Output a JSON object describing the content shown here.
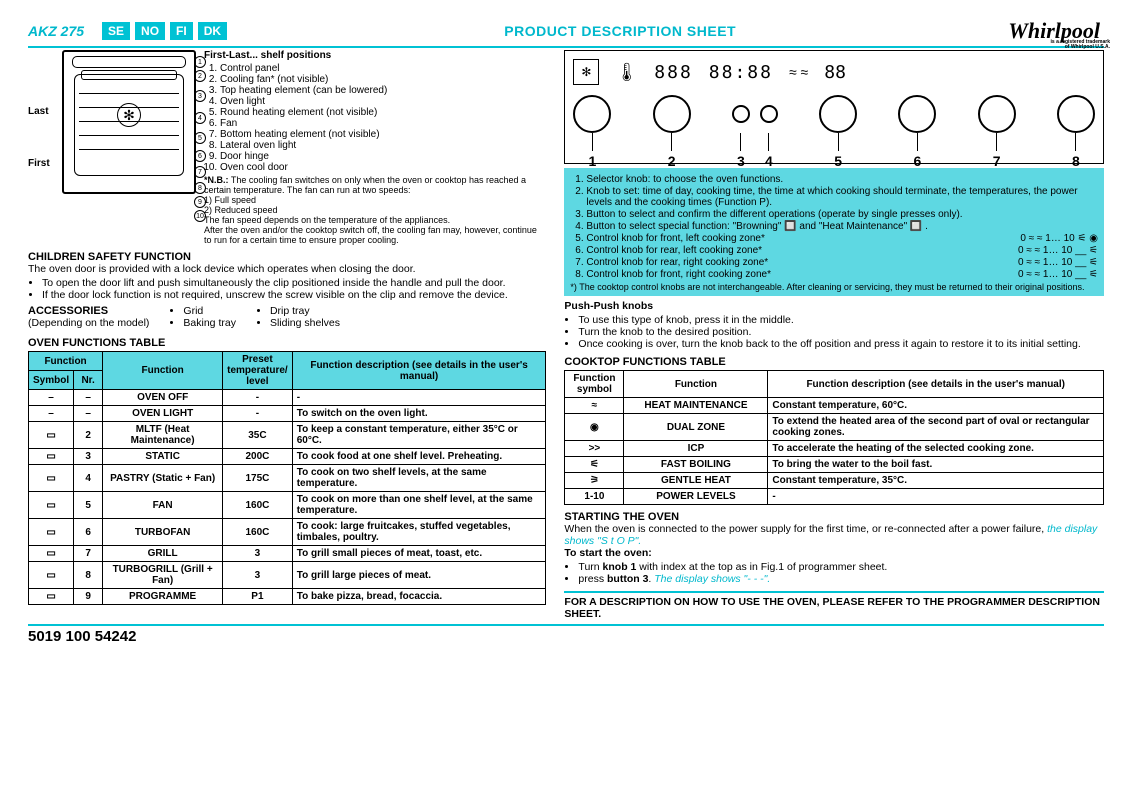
{
  "header": {
    "model": "AKZ 275",
    "countries": [
      "SE",
      "NO",
      "FI",
      "DK"
    ],
    "title": "PRODUCT DESCRIPTION SHEET",
    "brand": "Whirlpool",
    "brand_sub": "is a registered trademark of Whirlpool U.S.A."
  },
  "diagram": {
    "last": "Last",
    "first": "First",
    "firstlast": "First-Last... shelf positions",
    "parts": [
      "Control panel",
      "Cooling fan* (not visible)",
      "Top heating element (can be lowered)",
      "Oven light",
      "Round heating element (not visible)",
      "Fan",
      "Bottom heating element (not visible)",
      "Lateral oven light",
      "Door hinge",
      "Oven cool door"
    ],
    "nb_label": "*N.B.:",
    "nb_text": "The cooling fan switches on only when the oven or cooktop has reached a certain temperature. The fan can run at two speeds:",
    "nb_speed1": "1) Full speed",
    "nb_speed2": "2) Reduced speed",
    "nb_text2": "The fan speed depends on the temperature of the appliances.",
    "nb_text3": "After the oven and/or the cooktop switch off, the cooling fan may, however, continue to run for a certain time to ensure proper cooling."
  },
  "child_safety": {
    "head": "CHILDREN SAFETY FUNCTION",
    "line1": "The oven door is provided with a lock device which operates when closing the door.",
    "bul1": "To open the door lift and push simultaneously the clip positioned inside the handle and pull the door.",
    "bul2": "If the door lock function is not required, unscrew the screw visible on the clip and remove the device."
  },
  "accessories": {
    "head": "ACCESSORIES",
    "sub": "(Depending on the model)",
    "a1": "Grid",
    "a2": "Baking tray",
    "a3": "Drip tray",
    "a4": "Sliding shelves"
  },
  "oven_table": {
    "head": "OVEN FUNCTIONS TABLE",
    "cols": {
      "function": "Function",
      "symbol": "Symbol",
      "nr": "Nr.",
      "function2": "Function",
      "preset": "Preset temperature/ level",
      "desc": "Function description (see details in the user's manual)"
    },
    "rows": [
      {
        "sym": "–",
        "nr": "–",
        "name": "OVEN OFF",
        "preset": "-",
        "desc": "-"
      },
      {
        "sym": "–",
        "nr": "–",
        "name": "OVEN LIGHT",
        "preset": "-",
        "desc": "To switch on the oven light."
      },
      {
        "sym": "▭",
        "nr": "2",
        "name": "MLTF (Heat Maintenance)",
        "preset": "35C",
        "desc": "To keep a constant temperature, either 35°C or 60°C."
      },
      {
        "sym": "▭",
        "nr": "3",
        "name": "STATIC",
        "preset": "200C",
        "desc": "To cook food at one shelf level. Preheating."
      },
      {
        "sym": "▭",
        "nr": "4",
        "name": "PASTRY (Static + Fan)",
        "preset": "175C",
        "desc": "To cook on two shelf levels, at the same temperature."
      },
      {
        "sym": "▭",
        "nr": "5",
        "name": "FAN",
        "preset": "160C",
        "desc": "To cook on more than one shelf level, at the same temperature."
      },
      {
        "sym": "▭",
        "nr": "6",
        "name": "TURBOFAN",
        "preset": "160C",
        "desc": "To cook: large fruitcakes, stuffed vegetables, timbales, poultry."
      },
      {
        "sym": "▭",
        "nr": "7",
        "name": "GRILL",
        "preset": "3",
        "desc": "To grill small pieces of meat, toast, etc."
      },
      {
        "sym": "▭",
        "nr": "8",
        "name": "TURBOGRILL (Grill + Fan)",
        "preset": "3",
        "desc": "To grill large pieces of meat."
      },
      {
        "sym": "▭",
        "nr": "9",
        "name": "PROGRAMME",
        "preset": "P1",
        "desc": "To bake pizza, bread, focaccia."
      }
    ]
  },
  "panel_legend": {
    "items": [
      "Selector knob: to choose the oven functions.",
      "Knob to set: time of day, cooking time, the time at which cooking should terminate, the temperatures, the power levels and the cooking times (Function P).",
      "Button to select and confirm the different operations (operate by single presses only).",
      "Button to select special function: \"Browning\" 🔲 and \"Heat Maintenance\" 🔲 .",
      "Control knob for front, left cooking zone*",
      "Control knob for rear, left cooking zone*",
      "Control knob for rear, right cooking zone*",
      "Control knob for front, right cooking zone*"
    ],
    "knob_tail": "0 ≈ ≈ 1… 10 ⚟ ◉",
    "knob_tail2": "0 ≈ ≈ 1… 10 __ ⚟",
    "knob_tail3": "0 ≈ ≈ 1… 10 __ ⚟",
    "knob_tail4": "0 ≈ ≈ 1… 10 __ ⚟",
    "footnote_label": "*)",
    "footnote": "The cooktop control knobs are not interchangeable. After cleaning or servicing, they must be returned to their original positions."
  },
  "pushpush": {
    "head": "Push-Push knobs",
    "b1": "To use this type of knob, press it in the middle.",
    "b2": "Turn the knob to the desired position.",
    "b3": "Once cooking is over, turn the knob back to the off position and press it again to restore it to its initial setting."
  },
  "cooktop_table": {
    "head": "COOKTOP FUNCTIONS TABLE",
    "cols": {
      "sym": "Function symbol",
      "func": "Function",
      "desc": "Function description (see details in the user's manual)"
    },
    "rows": [
      {
        "sym": "≈",
        "name": "HEAT MAINTENANCE",
        "desc": "Constant temperature, 60°C."
      },
      {
        "sym": "◉",
        "name": "DUAL ZONE",
        "desc": "To extend the heated area of the second part of oval or rectangular cooking zones."
      },
      {
        "sym": ">>",
        "name": "ICP",
        "desc": "To accelerate the heating of the selected cooking zone."
      },
      {
        "sym": "⚟",
        "name": "FAST BOILING",
        "desc": "To bring the water to the boil fast."
      },
      {
        "sym": "⚞",
        "name": "GENTLE HEAT",
        "desc": "Constant temperature, 35°C."
      },
      {
        "sym": "1-10",
        "name": "POWER LEVELS",
        "desc": "-"
      }
    ]
  },
  "starting": {
    "head": "STARTING THE OVEN",
    "line1": "When the oven is connected to the power supply for the first time, or re-connected after a power failure,",
    "line1_teal": "the display shows \"S t O P\".",
    "subhead": "To start the oven:",
    "b1a": "Turn ",
    "b1b": "knob 1",
    "b1c": " with index at the top as in Fig.1 of programmer sheet.",
    "b2a": "press ",
    "b2b": "button 3",
    "b2c": ". ",
    "b2_teal": "The display shows \"- - -\"."
  },
  "footer": {
    "callout": "FOR A DESCRIPTION ON HOW TO USE THE OVEN, PLEASE REFER TO THE PROGRAMMER DESCRIPTION SHEET.",
    "partnum": "5019 100 54242"
  },
  "panel_display": {
    "clock": "88:88",
    "knob_numbers": [
      "1",
      "2",
      "3",
      "4",
      "5",
      "6",
      "7",
      "8"
    ]
  },
  "colors": {
    "teal": "#00c2d4",
    "teal_light": "#5ed8e2"
  }
}
